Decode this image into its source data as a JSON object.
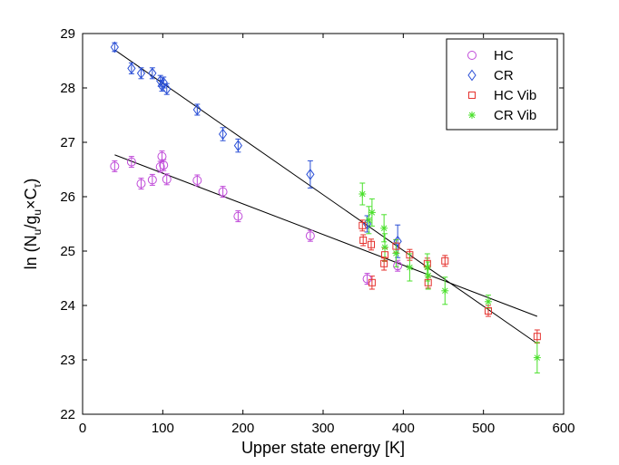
{
  "chart_data": {
    "type": "scatter",
    "title": "",
    "xlabel": "Upper state energy [K]",
    "ylabel": {
      "main": "ln (N",
      "sub1": "u",
      "mid1": "/g",
      "sub2": "u",
      "mid2": "×C",
      "sub3": "τ",
      "end": ")"
    },
    "xlim": [
      0,
      600
    ],
    "ylim": [
      22,
      29
    ],
    "x_ticks": [
      0,
      100,
      200,
      300,
      400,
      500,
      600
    ],
    "y_ticks": [
      22,
      23,
      24,
      25,
      26,
      27,
      28,
      29
    ],
    "grid": false,
    "legend_position": "top-right",
    "series": [
      {
        "name": "HC",
        "marker": "circle",
        "color": "#c04bd9",
        "points": [
          {
            "x": 40,
            "y": 26.56,
            "err": 0.1
          },
          {
            "x": 61,
            "y": 26.64,
            "err": 0.1
          },
          {
            "x": 73,
            "y": 26.24,
            "err": 0.1
          },
          {
            "x": 87,
            "y": 26.31,
            "err": 0.1
          },
          {
            "x": 97,
            "y": 26.55,
            "err": 0.1
          },
          {
            "x": 99,
            "y": 26.74,
            "err": 0.1
          },
          {
            "x": 101,
            "y": 26.58,
            "err": 0.1
          },
          {
            "x": 105,
            "y": 26.32,
            "err": 0.1
          },
          {
            "x": 143,
            "y": 26.3,
            "err": 0.1
          },
          {
            "x": 175,
            "y": 26.09,
            "err": 0.1
          },
          {
            "x": 194,
            "y": 25.64,
            "err": 0.1
          },
          {
            "x": 284,
            "y": 25.28,
            "err": 0.1
          },
          {
            "x": 355,
            "y": 24.49,
            "err": 0.1
          },
          {
            "x": 393,
            "y": 24.73,
            "err": 0.1
          }
        ]
      },
      {
        "name": "CR",
        "marker": "diamond",
        "color": "#2a4fd6",
        "points": [
          {
            "x": 40,
            "y": 28.75,
            "err": 0.08
          },
          {
            "x": 61,
            "y": 28.36,
            "err": 0.1
          },
          {
            "x": 73,
            "y": 28.27,
            "err": 0.1
          },
          {
            "x": 87,
            "y": 28.27,
            "err": 0.1
          },
          {
            "x": 97,
            "y": 28.13,
            "err": 0.1
          },
          {
            "x": 99,
            "y": 28.04,
            "err": 0.1
          },
          {
            "x": 101,
            "y": 28.1,
            "err": 0.1
          },
          {
            "x": 105,
            "y": 27.98,
            "err": 0.1
          },
          {
            "x": 143,
            "y": 27.6,
            "err": 0.1
          },
          {
            "x": 175,
            "y": 27.15,
            "err": 0.12
          },
          {
            "x": 194,
            "y": 26.94,
            "err": 0.12
          },
          {
            "x": 284,
            "y": 26.41,
            "err": 0.25
          },
          {
            "x": 355,
            "y": 25.5,
            "err": 0.15
          },
          {
            "x": 393,
            "y": 25.18,
            "err": 0.3
          }
        ]
      },
      {
        "name": "HC Vib",
        "marker": "square",
        "color": "#e5322e",
        "points": [
          {
            "x": 349,
            "y": 25.47,
            "err": 0.1
          },
          {
            "x": 350,
            "y": 25.2,
            "err": 0.1
          },
          {
            "x": 360,
            "y": 25.12,
            "err": 0.1
          },
          {
            "x": 361,
            "y": 24.42,
            "err": 0.12
          },
          {
            "x": 376,
            "y": 24.77,
            "err": 0.12
          },
          {
            "x": 377,
            "y": 24.93,
            "err": 0.12
          },
          {
            "x": 391,
            "y": 25.09,
            "err": 0.12
          },
          {
            "x": 408,
            "y": 24.93,
            "err": 0.1
          },
          {
            "x": 430,
            "y": 24.77,
            "err": 0.1
          },
          {
            "x": 431,
            "y": 24.42,
            "err": 0.1
          },
          {
            "x": 452,
            "y": 24.82,
            "err": 0.1
          },
          {
            "x": 506,
            "y": 23.9,
            "err": 0.1
          },
          {
            "x": 567,
            "y": 23.43,
            "err": 0.12
          }
        ]
      },
      {
        "name": "CR Vib",
        "marker": "asterisk",
        "color": "#49e02a",
        "points": [
          {
            "x": 349,
            "y": 26.05,
            "err": 0.2
          },
          {
            "x": 357,
            "y": 25.57,
            "err": 0.25
          },
          {
            "x": 361,
            "y": 25.71,
            "err": 0.25
          },
          {
            "x": 376,
            "y": 25.42,
            "err": 0.25
          },
          {
            "x": 377,
            "y": 25.07,
            "err": 0.25
          },
          {
            "x": 391,
            "y": 24.96,
            "err": 0.25
          },
          {
            "x": 408,
            "y": 24.7,
            "err": 0.25
          },
          {
            "x": 430,
            "y": 24.7,
            "err": 0.25
          },
          {
            "x": 431,
            "y": 24.55,
            "err": 0.25
          },
          {
            "x": 452,
            "y": 24.27,
            "err": 0.25
          },
          {
            "x": 506,
            "y": 24.07,
            "err": 0.12
          },
          {
            "x": 567,
            "y": 23.04,
            "err": 0.28
          }
        ]
      }
    ],
    "fit_lines": [
      {
        "x": [
          40,
          567
        ],
        "y": [
          26.77,
          23.8
        ],
        "color": "#000000"
      },
      {
        "x": [
          40,
          567
        ],
        "y": [
          28.7,
          23.3
        ],
        "color": "#000000"
      }
    ]
  }
}
